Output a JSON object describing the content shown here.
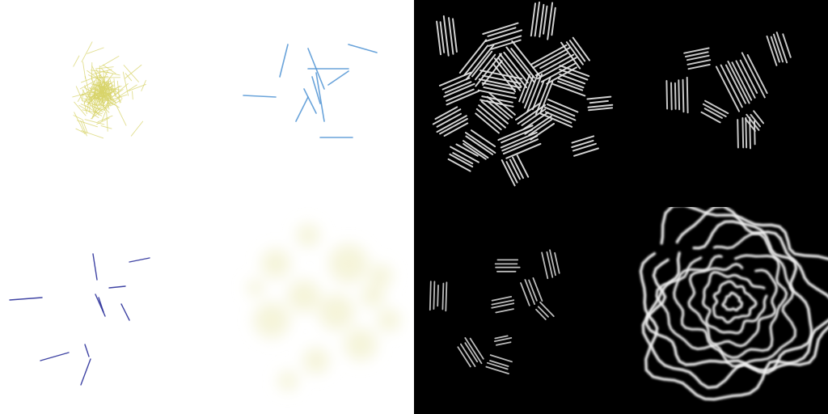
{
  "texture_atlas": {
    "panels": [
      {
        "id": "color",
        "tiles": [
          {
            "id": "straw-strokes",
            "color": "#d8d46a"
          },
          {
            "id": "blue-needles",
            "color": "#4f93d4"
          },
          {
            "id": "indigo-needles",
            "color": "#2a2f9a"
          },
          {
            "id": "cream-blotches",
            "color": "#f4f3d8"
          }
        ]
      },
      {
        "id": "mask",
        "tiles": [
          {
            "id": "dense-hatch-cluster",
            "color": "#e8e8e8"
          },
          {
            "id": "sparse-hatch-groups",
            "color": "#dcdcdc"
          },
          {
            "id": "small-hatch-groups",
            "color": "#d0d0d0"
          },
          {
            "id": "concentric-ripple-rings",
            "color": "#f0f0f0"
          }
        ]
      }
    ]
  }
}
